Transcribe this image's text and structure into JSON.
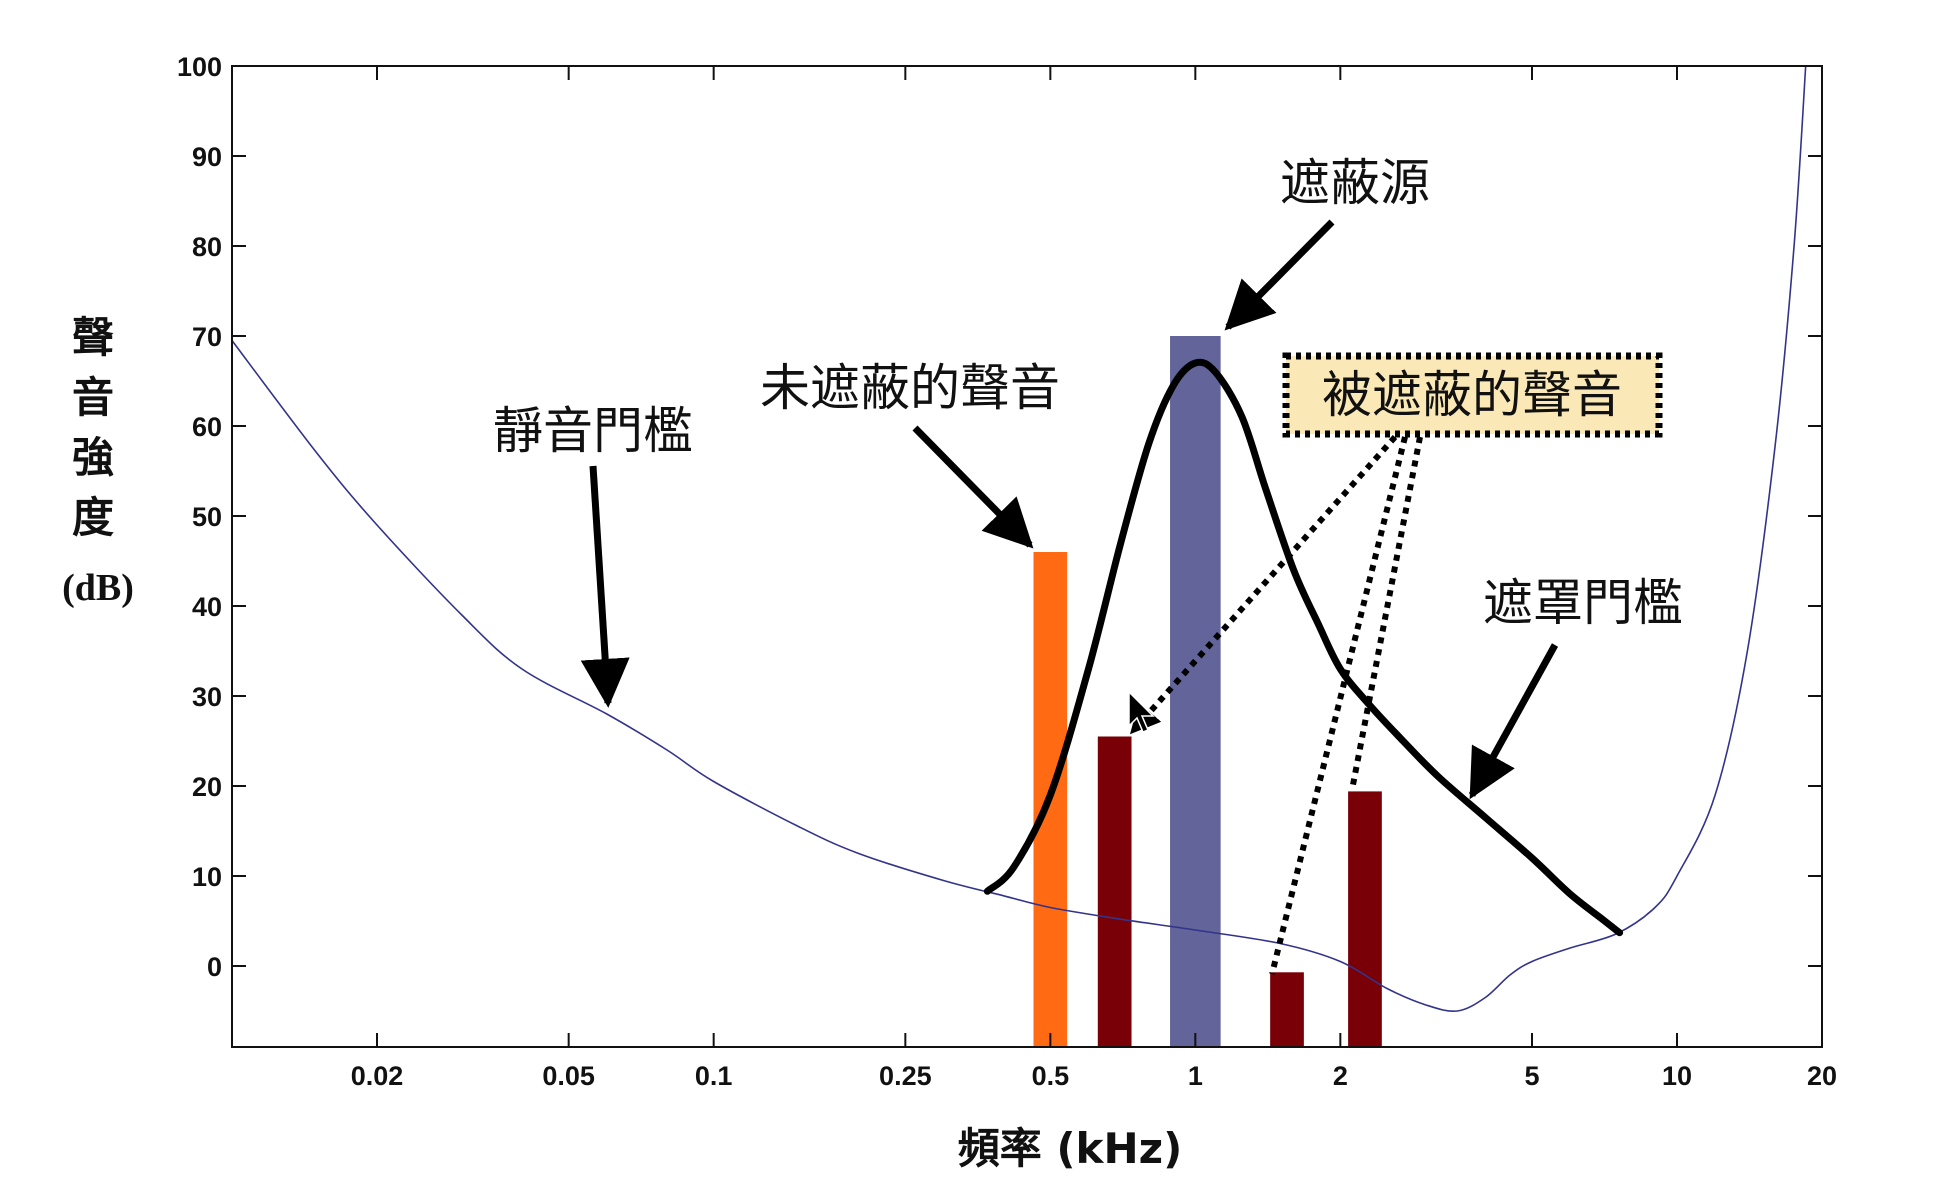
{
  "chart_data": {
    "type": "bar",
    "title": "",
    "xlabel": "頻率 (kHz)",
    "ylabel_chars": [
      "聲",
      "音",
      "強",
      "度"
    ],
    "ylabel_unit": "(dB)",
    "xscale": "log",
    "xlim": [
      0.01,
      20
    ],
    "ylim": [
      -9,
      100
    ],
    "x_ticks": [
      {
        "value": 0.02,
        "label": "0.02"
      },
      {
        "value": 0.05,
        "label": "0.05"
      },
      {
        "value": 0.1,
        "label": "0.1"
      },
      {
        "value": 0.25,
        "label": "0.25"
      },
      {
        "value": 0.5,
        "label": "0.5"
      },
      {
        "value": 1,
        "label": "1"
      },
      {
        "value": 2,
        "label": "2"
      },
      {
        "value": 5,
        "label": "5"
      },
      {
        "value": 10,
        "label": "10"
      },
      {
        "value": 20,
        "label": "20"
      }
    ],
    "y_ticks": [
      {
        "value": 0,
        "label": "0"
      },
      {
        "value": 10,
        "label": "10"
      },
      {
        "value": 20,
        "label": "20"
      },
      {
        "value": 30,
        "label": "30"
      },
      {
        "value": 40,
        "label": "40"
      },
      {
        "value": 50,
        "label": "50"
      },
      {
        "value": 60,
        "label": "60"
      },
      {
        "value": 70,
        "label": "70"
      },
      {
        "value": 80,
        "label": "80"
      },
      {
        "value": 90,
        "label": "90"
      },
      {
        "value": 100,
        "label": "100"
      }
    ],
    "bars": [
      {
        "name": "unmasked-tone",
        "x": 0.5,
        "value": 46,
        "color": "#FF6A12",
        "width_decades": 0.07
      },
      {
        "name": "masked-tone-1",
        "x": 0.68,
        "value": 25.5,
        "color": "#7A0007",
        "width_decades": 0.07
      },
      {
        "name": "masker",
        "x": 1.0,
        "value": 70,
        "color": "#62649A",
        "width_decades": 0.105
      },
      {
        "name": "masked-tone-2",
        "x": 1.55,
        "value": -0.7,
        "color": "#7A0007",
        "width_decades": 0.07
      },
      {
        "name": "masked-tone-3",
        "x": 2.25,
        "value": 19.4,
        "color": "#7A0007",
        "width_decades": 0.07
      }
    ],
    "series": [
      {
        "name": "靜音門檻",
        "style": "thin",
        "color": "#33338C",
        "points": [
          [
            0.01,
            69.5
          ],
          [
            0.015,
            57
          ],
          [
            0.02,
            49
          ],
          [
            0.03,
            39
          ],
          [
            0.04,
            33
          ],
          [
            0.06,
            28
          ],
          [
            0.08,
            24
          ],
          [
            0.1,
            20.5
          ],
          [
            0.15,
            15.5
          ],
          [
            0.2,
            12.5
          ],
          [
            0.3,
            9.5
          ],
          [
            0.4,
            7.8
          ],
          [
            0.5,
            6.5
          ],
          [
            0.7,
            5.2
          ],
          [
            1.0,
            4
          ],
          [
            1.5,
            2.5
          ],
          [
            2.0,
            0.5
          ],
          [
            2.5,
            -2.5
          ],
          [
            3.0,
            -4.3
          ],
          [
            3.5,
            -5
          ],
          [
            4.0,
            -3.5
          ],
          [
            4.5,
            -1
          ],
          [
            5.0,
            0.5
          ],
          [
            6.0,
            2
          ],
          [
            7.5,
            3.6
          ],
          [
            9.0,
            6.5
          ],
          [
            10.0,
            10
          ],
          [
            12.0,
            19
          ],
          [
            14.0,
            35
          ],
          [
            16.0,
            58
          ],
          [
            17.5,
            80
          ],
          [
            18.5,
            100
          ]
        ]
      },
      {
        "name": "遮罩門檻",
        "style": "thick",
        "color": "#000000",
        "points": [
          [
            0.37,
            8.3
          ],
          [
            0.42,
            11
          ],
          [
            0.5,
            19
          ],
          [
            0.6,
            33
          ],
          [
            0.7,
            47
          ],
          [
            0.8,
            58
          ],
          [
            0.9,
            64.5
          ],
          [
            1.0,
            67
          ],
          [
            1.1,
            66
          ],
          [
            1.25,
            61
          ],
          [
            1.4,
            53
          ],
          [
            1.6,
            44
          ],
          [
            1.8,
            38
          ],
          [
            2.0,
            33
          ],
          [
            2.3,
            29
          ],
          [
            2.7,
            25
          ],
          [
            3.2,
            21
          ],
          [
            4.0,
            16.5
          ],
          [
            5.0,
            12
          ],
          [
            6.0,
            8
          ],
          [
            7.0,
            5.2
          ],
          [
            7.6,
            3.7
          ]
        ]
      }
    ],
    "annotations": {
      "masker_label": "遮蔽源",
      "unmasked_label": "未遮蔽的聲音",
      "masked_label": "被遮蔽的聲音",
      "quiet_threshold_label": "靜音門檻",
      "masking_threshold_label": "遮罩門檻"
    },
    "colors": {
      "masked_box_fill": "#FAE9B7",
      "axis": "#111111"
    }
  }
}
